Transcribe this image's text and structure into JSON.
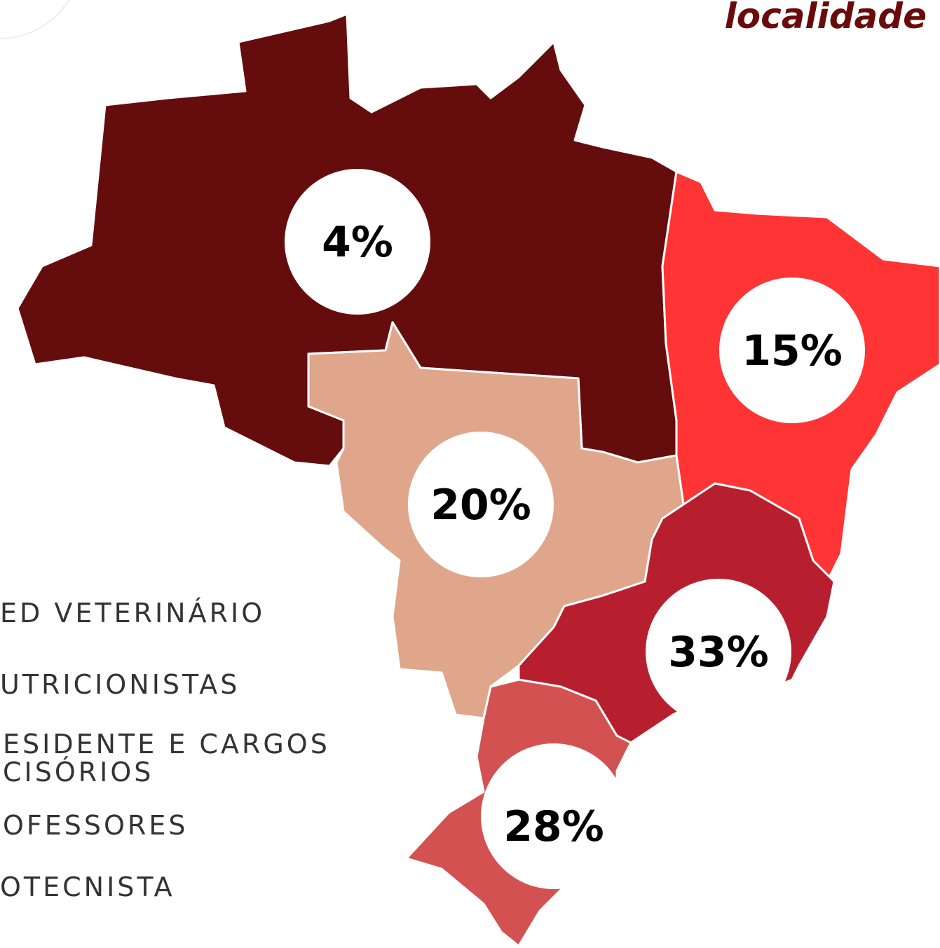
{
  "title": "localidade",
  "region_labels": [
    "4%",
    "15%",
    "20%",
    "33%",
    "28%"
  ],
  "list_items": [
    "ED VETERINÁRIO",
    "UTRICIONISTAS",
    "ESIDENTE E CARGOS",
    "CISÓRIOS",
    "OFESSORES",
    "OTECNISTA"
  ]
}
